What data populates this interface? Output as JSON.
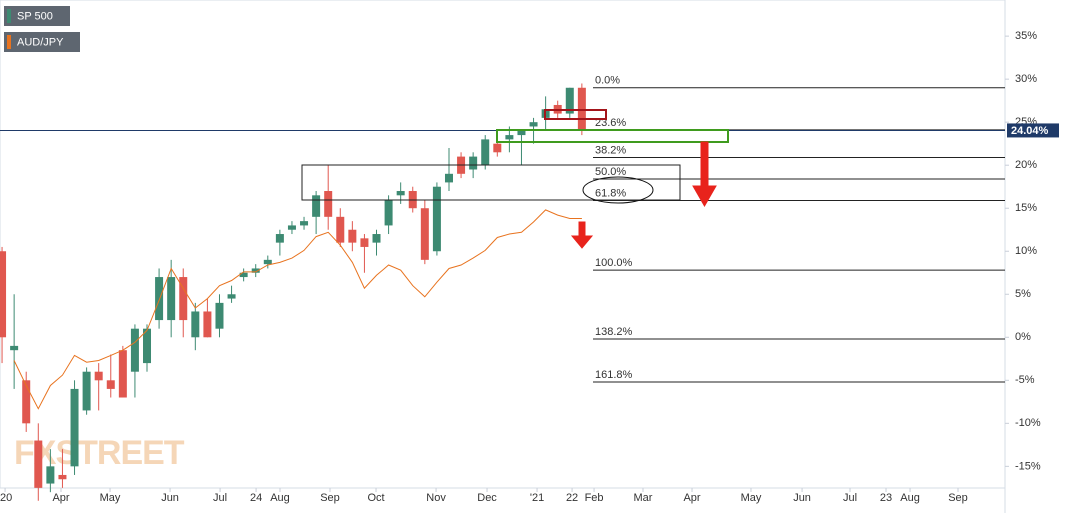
{
  "chart_data": {
    "type": "candlestick",
    "watermark": "FXSTREET",
    "x": [
      0,
      1,
      2,
      3,
      4,
      5,
      6,
      7,
      8,
      9,
      10,
      11,
      12,
      13,
      14,
      15,
      16,
      17,
      18,
      19,
      20,
      21,
      22,
      23,
      24,
      25,
      26,
      27,
      28,
      29,
      30,
      31,
      32,
      33,
      34,
      35,
      36,
      37,
      38,
      39,
      40,
      41,
      42,
      43,
      44,
      45,
      46,
      47,
      48
    ],
    "series": [
      {
        "name": "SP 500",
        "up_color": "#3d8a72",
        "down_color": "#e0574f",
        "open": [
          10,
          -1.5,
          -5,
          -12,
          -17,
          -16,
          -15,
          -8.5,
          -4,
          -5,
          -1.5,
          -4,
          -3,
          2,
          2,
          7,
          0,
          3,
          1,
          4.5,
          7,
          7.5,
          8.5,
          11,
          12.5,
          13,
          14,
          17,
          14,
          12.5,
          11.5,
          11,
          13,
          16.5,
          17,
          15,
          10,
          18,
          21,
          19.5,
          20,
          22.5,
          23,
          23.5,
          24.5,
          25.5,
          27,
          26,
          29
        ],
        "high": [
          10.5,
          5,
          -4,
          -10,
          -13,
          -13,
          -5,
          -3.5,
          -3,
          -2,
          -1,
          1.5,
          1.5,
          8,
          9,
          8,
          4,
          4.5,
          5,
          6,
          8,
          8.5,
          9.5,
          12.5,
          13.5,
          14,
          17,
          20,
          15,
          13.5,
          12,
          12.5,
          16.5,
          18,
          17.5,
          16,
          18,
          22,
          21.5,
          21.5,
          23.5,
          24,
          24.5,
          24,
          25.5,
          28,
          27.5,
          29,
          29.5
        ],
        "low": [
          -3,
          -6,
          -11,
          -19,
          -18,
          -17.5,
          -16,
          -9,
          -8.5,
          -7,
          -7,
          -7,
          -4,
          1,
          0,
          0,
          -1.5,
          0,
          0,
          4,
          6.5,
          7,
          8,
          9.5,
          12,
          12.5,
          12,
          12.5,
          10.5,
          10,
          7.5,
          9.5,
          12,
          15.5,
          14.5,
          8.5,
          9.5,
          17,
          18.5,
          18.5,
          19.5,
          21,
          21.5,
          20,
          22.5,
          24,
          25.5,
          25.5,
          23.5
        ],
        "close": [
          0,
          -1,
          -10,
          -17.5,
          -15,
          -16.5,
          -6,
          -4,
          -5,
          -6,
          -7,
          1,
          1,
          7,
          7,
          2,
          3,
          0,
          4,
          5,
          7.5,
          8,
          9,
          12,
          13,
          13.5,
          16.5,
          14,
          11,
          11,
          10.5,
          12,
          16,
          17,
          15,
          9,
          17.5,
          19,
          19,
          21,
          23,
          21.5,
          23.5,
          24,
          25,
          26.5,
          26,
          29,
          24.04
        ]
      },
      {
        "name": "AUD/JPY",
        "color": "#e8731f",
        "values": [
          null,
          -2.7,
          -5.6,
          -8.3,
          -5.6,
          -4.4,
          -2.1,
          -2.9,
          -2.7,
          -2.1,
          -1.5,
          -0.6,
          0.8,
          4.3,
          8.0,
          5.7,
          3.4,
          4.5,
          6.0,
          6.6,
          7.6,
          7.6,
          8.4,
          8.7,
          9.2,
          10.1,
          11.7,
          12.2,
          10.7,
          8.7,
          5.7,
          7.2,
          8.4,
          7.8,
          6.0,
          4.7,
          6.4,
          8.0,
          8.4,
          9.2,
          10.1,
          11.6,
          12.0,
          12.2,
          13.4,
          14.8,
          14.2,
          13.8,
          13.8
        ]
      }
    ],
    "last_price": {
      "value": 24.04,
      "label": "24.04%",
      "color": "#1f3a68"
    },
    "fib_levels": [
      {
        "value": 29,
        "label": "0.0%"
      },
      {
        "value": 24.1,
        "label": "23.6%"
      },
      {
        "value": 20.9,
        "label": "38.2%"
      },
      {
        "value": 18.4,
        "label": "50.0%"
      },
      {
        "value": 15.9,
        "label": "61.8%"
      },
      {
        "value": 7.8,
        "label": "100.0%"
      },
      {
        "value": -0.2,
        "label": "138.2%"
      },
      {
        "value": -5.2,
        "label": "161.8%"
      }
    ],
    "ylim": [
      -17.4,
      39.2
    ],
    "yticks": [
      {
        "value": 35,
        "label": "35%"
      },
      {
        "value": 30,
        "label": "30%"
      },
      {
        "value": 25,
        "label": "25%"
      },
      {
        "value": 20,
        "label": "20%"
      },
      {
        "value": 15,
        "label": "15%"
      },
      {
        "value": 10,
        "label": "10%"
      },
      {
        "value": 5,
        "label": "5%"
      },
      {
        "value": 0,
        "label": "0%"
      },
      {
        "value": -5,
        "label": "-5%"
      },
      {
        "value": -10,
        "label": "-10%"
      },
      {
        "value": -15,
        "label": "-15%"
      }
    ],
    "xlim": [
      -0.17,
      83.03
    ],
    "xticks": [
      {
        "value": 0.25,
        "label": "'20"
      },
      {
        "value": 4.88,
        "label": "Apr"
      },
      {
        "value": 8.94,
        "label": "May"
      },
      {
        "value": 13.91,
        "label": "Jun"
      },
      {
        "value": 18.05,
        "label": "Jul"
      },
      {
        "value": 21.03,
        "label": "24"
      },
      {
        "value": 23.01,
        "label": "Aug"
      },
      {
        "value": 27.15,
        "label": "Sep"
      },
      {
        "value": 30.96,
        "label": "Oct"
      },
      {
        "value": 35.93,
        "label": "Nov"
      },
      {
        "value": 40.15,
        "label": "Dec"
      },
      {
        "value": 44.29,
        "label": "'21"
      },
      {
        "value": 47.19,
        "label": "22"
      },
      {
        "value": 49.01,
        "label": "Feb"
      },
      {
        "value": 53.06,
        "label": "Mar"
      },
      {
        "value": 57.12,
        "label": "Apr"
      },
      {
        "value": 62.0,
        "label": "May"
      },
      {
        "value": 66.23,
        "label": "Jun"
      },
      {
        "value": 70.2,
        "label": "Jul"
      },
      {
        "value": 73.18,
        "label": "23"
      },
      {
        "value": 75.17,
        "label": "Aug"
      },
      {
        "value": 79.14,
        "label": "Sep"
      }
    ]
  }
}
